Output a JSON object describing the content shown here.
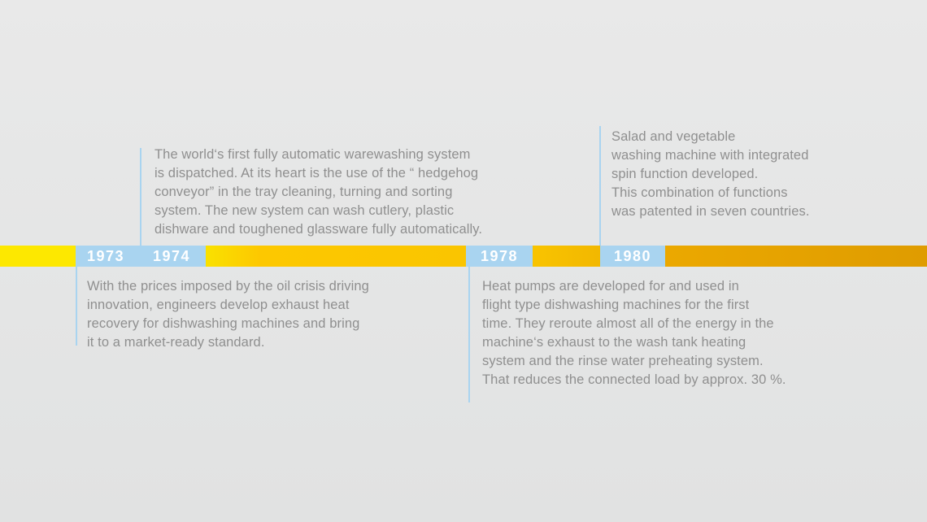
{
  "timeline": {
    "years": [
      {
        "label": "1973"
      },
      {
        "label": "1974"
      },
      {
        "label": "1978"
      },
      {
        "label": "1980"
      }
    ],
    "events": [
      {
        "year": "1974",
        "position": "above-band",
        "text": "The world‘s first fully automatic warewashing system\nis dispatched. At its heart is the use of the “ hedgehog\nconveyor” in the tray cleaning, turning and sorting\nsystem. The new system can wash cutlery, plastic\ndishware and toughened glassware fully automatically."
      },
      {
        "year": "1973",
        "position": "below-band",
        "text": "With the prices imposed by the oil crisis driving\ninnovation, engineers develop exhaust heat\nrecovery for dishwashing machines and bring\nit to a market-ready standard."
      },
      {
        "year": "1978",
        "position": "below-band",
        "text": "Heat pumps are developed for and used in\nflight type dishwashing machines for the first\ntime. They reroute almost all of the energy in the\nmachine‘s exhaust to the wash tank heating\nsystem and the rinse water preheating system.\nThat reduces the connected load by approx. 30 %."
      },
      {
        "year": "1980",
        "position": "above-band",
        "text": "Salad and vegetable\nwashing machine with integrated\nspin function developed.\nThis combination of functions\nwas patented in seven countries."
      }
    ],
    "colors": {
      "band_yellow": "#fde800",
      "band_gold": "#fcc700",
      "band_amber": "#e8a602",
      "year_box_blue": "#a9d4f0",
      "connector_blue": "#a9d4f0",
      "year_text": "#ffffff",
      "body_text_gray": "#8f8f8f",
      "background": "#e5e6e6"
    }
  }
}
